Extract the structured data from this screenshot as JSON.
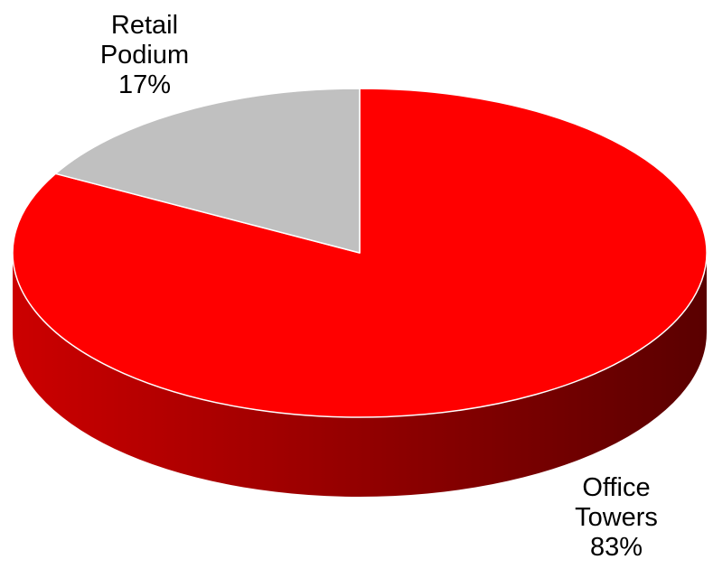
{
  "chart_data": {
    "type": "pie",
    "style": "3d",
    "slices": [
      {
        "label_lines": [
          "Office",
          "Towers"
        ],
        "value": 83,
        "value_label": "83%",
        "color": "#ff0000",
        "side_color_dark": "#5a0000",
        "side_color_light": "#cc0000"
      },
      {
        "label_lines": [
          "Retail",
          "Podium"
        ],
        "value": 17,
        "value_label": "17%",
        "color": "#c0c0c0",
        "side_color_dark": "#8a8a8a",
        "side_color_light": "#b0b0b0"
      }
    ],
    "legend": "none",
    "data_labels": "outside"
  }
}
